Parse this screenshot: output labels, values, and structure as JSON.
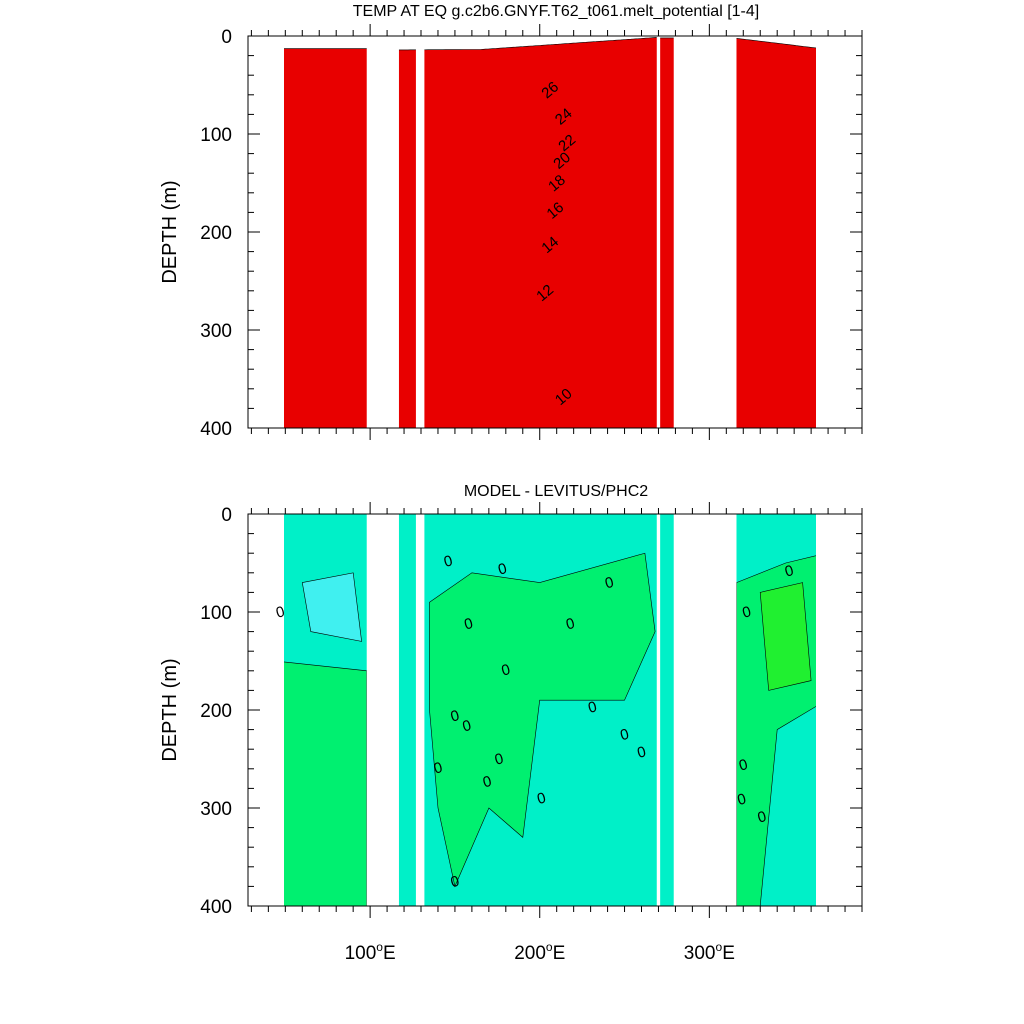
{
  "chart_data": [
    {
      "type": "heatmap",
      "title": "TEMP AT EQ g.c2b6.GNYF.T62_t061.melt_potential [1-4]",
      "ylabel": "DEPTH (m)",
      "xlabel": "",
      "xlim": [
        28,
        390
      ],
      "ylim": [
        400,
        0
      ],
      "y_ticks": [
        0,
        100,
        200,
        300,
        400
      ],
      "x_ticks": [
        {
          "value": 100,
          "label": "100",
          "suffix": "E"
        },
        {
          "value": 200,
          "label": "200",
          "suffix": "E"
        },
        {
          "value": 300,
          "label": "300",
          "suffix": "E"
        }
      ],
      "contour_labels": [
        {
          "value": "26",
          "lon": 206,
          "depth": 55
        },
        {
          "value": "24",
          "lon": 214,
          "depth": 82
        },
        {
          "value": "22",
          "lon": 216,
          "depth": 109
        },
        {
          "value": "20",
          "lon": 213,
          "depth": 127
        },
        {
          "value": "18",
          "lon": 210,
          "depth": 150
        },
        {
          "value": "16",
          "lon": 209,
          "depth": 178
        },
        {
          "value": "14",
          "lon": 206,
          "depth": 213
        },
        {
          "value": "12",
          "lon": 203,
          "depth": 262
        },
        {
          "value": "10",
          "lon": 214,
          "depth": 368
        }
      ],
      "field": "temperature",
      "land_gaps_lon": [
        [
          98,
          117
        ],
        [
          127,
          132
        ],
        [
          269,
          271
        ],
        [
          279,
          316
        ]
      ],
      "grid": false
    },
    {
      "type": "heatmap",
      "title": "MODEL - LEVITUS/PHC2",
      "ylabel": "DEPTH (m)",
      "xlabel": "",
      "xlim": [
        28,
        390
      ],
      "ylim": [
        400,
        0
      ],
      "y_ticks": [
        0,
        100,
        200,
        300,
        400
      ],
      "x_ticks": [
        {
          "value": 100,
          "label": "100",
          "suffix": "E"
        },
        {
          "value": 200,
          "label": "200",
          "suffix": "E"
        },
        {
          "value": 300,
          "label": "300",
          "suffix": "E"
        }
      ],
      "contour_labels": [
        {
          "value": "0",
          "lon": 47,
          "depth": 100
        },
        {
          "value": "0",
          "lon": 146,
          "depth": 48
        },
        {
          "value": "0",
          "lon": 178,
          "depth": 56
        },
        {
          "value": "0",
          "lon": 241,
          "depth": 70
        },
        {
          "value": "0",
          "lon": 347,
          "depth": 58
        },
        {
          "value": "0",
          "lon": 158,
          "depth": 112
        },
        {
          "value": "0",
          "lon": 218,
          "depth": 112
        },
        {
          "value": "0",
          "lon": 322,
          "depth": 100
        },
        {
          "value": "0",
          "lon": 180,
          "depth": 159
        },
        {
          "value": "0",
          "lon": 231,
          "depth": 197
        },
        {
          "value": "0",
          "lon": 150,
          "depth": 206
        },
        {
          "value": "0",
          "lon": 157,
          "depth": 216
        },
        {
          "value": "0",
          "lon": 250,
          "depth": 225
        },
        {
          "value": "0",
          "lon": 260,
          "depth": 243
        },
        {
          "value": "0",
          "lon": 176,
          "depth": 250
        },
        {
          "value": "0",
          "lon": 140,
          "depth": 259
        },
        {
          "value": "0",
          "lon": 320,
          "depth": 256
        },
        {
          "value": "0",
          "lon": 169,
          "depth": 273
        },
        {
          "value": "0",
          "lon": 201,
          "depth": 290
        },
        {
          "value": "0",
          "lon": 319,
          "depth": 291
        },
        {
          "value": "0",
          "lon": 331,
          "depth": 309
        },
        {
          "value": "0",
          "lon": 150,
          "depth": 375
        }
      ],
      "field": "difference",
      "land_gaps_lon": [
        [
          98,
          117
        ],
        [
          127,
          132
        ],
        [
          269,
          271
        ],
        [
          279,
          316
        ]
      ],
      "grid": false
    }
  ],
  "colors": {
    "palette": [
      "#1a2cc8",
      "#1f5cf0",
      "#2a8cf0",
      "#26b0f0",
      "#2cd0ff",
      "#30e8ff",
      "#00ffff",
      "#28ffd0",
      "#20f0a0",
      "#10ee50",
      "#00c000",
      "#a0f020",
      "#ffff40",
      "#ffd040",
      "#ffb020",
      "#ff8c10",
      "#ff5000",
      "#e80000"
    ],
    "diff_mid": "#00f0c8",
    "diff_pos": "#00f070",
    "diff_pos2": "#20f030",
    "diff_neg": "#40f0f0"
  }
}
